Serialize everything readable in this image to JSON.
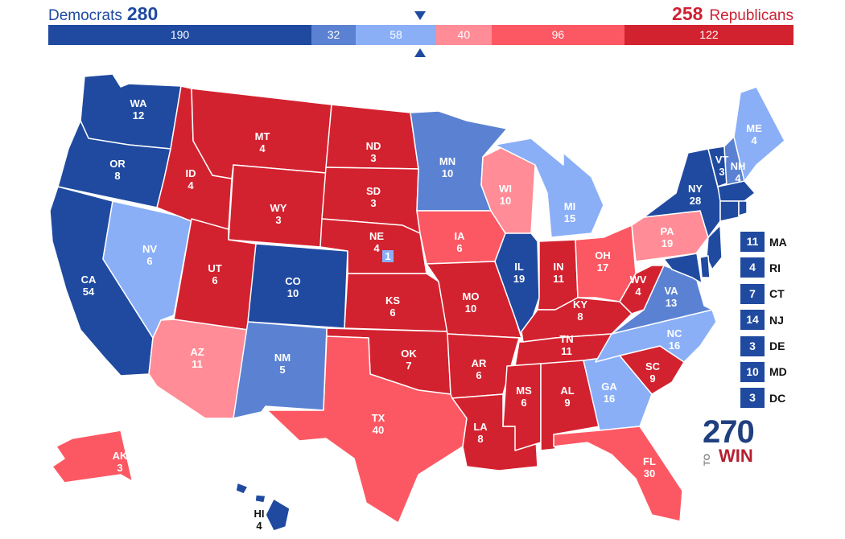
{
  "header": {
    "dem_label": "Democrats",
    "dem_total": "280",
    "rep_total": "258",
    "rep_label": "Republicans"
  },
  "bar": {
    "segments": [
      {
        "label": "190",
        "value": 190,
        "color": "#1f4aa0"
      },
      {
        "label": "32",
        "value": 32,
        "color": "#5b82d2"
      },
      {
        "label": "58",
        "value": 58,
        "color": "#8aaff7"
      },
      {
        "label": "40",
        "value": 40,
        "color": "#ff8c96"
      },
      {
        "label": "96",
        "value": 96,
        "color": "#fc5863"
      },
      {
        "label": "122",
        "value": 122,
        "color": "#d3222f"
      }
    ]
  },
  "colors": {
    "safe_dem": "#1f4aa0",
    "likely_dem": "#5b82d2",
    "lean_dem": "#8aaff7",
    "lean_rep": "#ff8c96",
    "likely_rep": "#fc5863",
    "safe_rep": "#d3222f"
  },
  "states": [
    {
      "abbr": "WA",
      "ev": "12",
      "rating": "safe_dem"
    },
    {
      "abbr": "OR",
      "ev": "8",
      "rating": "safe_dem"
    },
    {
      "abbr": "CA",
      "ev": "54",
      "rating": "safe_dem"
    },
    {
      "abbr": "NV",
      "ev": "6",
      "rating": "lean_dem"
    },
    {
      "abbr": "ID",
      "ev": "4",
      "rating": "safe_rep"
    },
    {
      "abbr": "MT",
      "ev": "4",
      "rating": "safe_rep"
    },
    {
      "abbr": "WY",
      "ev": "3",
      "rating": "safe_rep"
    },
    {
      "abbr": "UT",
      "ev": "6",
      "rating": "safe_rep"
    },
    {
      "abbr": "AZ",
      "ev": "11",
      "rating": "lean_rep"
    },
    {
      "abbr": "CO",
      "ev": "10",
      "rating": "safe_dem"
    },
    {
      "abbr": "NM",
      "ev": "5",
      "rating": "likely_dem"
    },
    {
      "abbr": "ND",
      "ev": "3",
      "rating": "safe_rep"
    },
    {
      "abbr": "SD",
      "ev": "3",
      "rating": "safe_rep"
    },
    {
      "abbr": "NE",
      "ev": "4",
      "rating": "safe_rep"
    },
    {
      "abbr": "KS",
      "ev": "6",
      "rating": "safe_rep"
    },
    {
      "abbr": "OK",
      "ev": "7",
      "rating": "safe_rep"
    },
    {
      "abbr": "TX",
      "ev": "40",
      "rating": "likely_rep"
    },
    {
      "abbr": "MN",
      "ev": "10",
      "rating": "likely_dem"
    },
    {
      "abbr": "IA",
      "ev": "6",
      "rating": "likely_rep"
    },
    {
      "abbr": "MO",
      "ev": "10",
      "rating": "safe_rep"
    },
    {
      "abbr": "AR",
      "ev": "6",
      "rating": "safe_rep"
    },
    {
      "abbr": "LA",
      "ev": "8",
      "rating": "safe_rep"
    },
    {
      "abbr": "WI",
      "ev": "10",
      "rating": "lean_rep"
    },
    {
      "abbr": "IL",
      "ev": "19",
      "rating": "safe_dem"
    },
    {
      "abbr": "MI",
      "ev": "15",
      "rating": "lean_dem"
    },
    {
      "abbr": "IN",
      "ev": "11",
      "rating": "safe_rep"
    },
    {
      "abbr": "OH",
      "ev": "17",
      "rating": "likely_rep"
    },
    {
      "abbr": "KY",
      "ev": "8",
      "rating": "safe_rep"
    },
    {
      "abbr": "TN",
      "ev": "11",
      "rating": "safe_rep"
    },
    {
      "abbr": "MS",
      "ev": "6",
      "rating": "safe_rep"
    },
    {
      "abbr": "AL",
      "ev": "9",
      "rating": "safe_rep"
    },
    {
      "abbr": "GA",
      "ev": "16",
      "rating": "lean_dem"
    },
    {
      "abbr": "FL",
      "ev": "30",
      "rating": "likely_rep"
    },
    {
      "abbr": "SC",
      "ev": "9",
      "rating": "safe_rep"
    },
    {
      "abbr": "NC",
      "ev": "16",
      "rating": "lean_dem"
    },
    {
      "abbr": "VA",
      "ev": "13",
      "rating": "likely_dem"
    },
    {
      "abbr": "WV",
      "ev": "4",
      "rating": "safe_rep"
    },
    {
      "abbr": "PA",
      "ev": "19",
      "rating": "lean_rep"
    },
    {
      "abbr": "NY",
      "ev": "28",
      "rating": "safe_dem"
    },
    {
      "abbr": "VT",
      "ev": "3",
      "rating": "safe_dem"
    },
    {
      "abbr": "NH",
      "ev": "4",
      "rating": "likely_dem"
    },
    {
      "abbr": "ME",
      "ev": "4",
      "rating": "lean_dem"
    },
    {
      "abbr": "AK",
      "ev": "3",
      "rating": "likely_rep"
    },
    {
      "abbr": "HI",
      "ev": "4",
      "rating": "safe_dem"
    }
  ],
  "ne_district": {
    "value": "1",
    "rating": "lean_dem"
  },
  "small_states": [
    {
      "ev": "11",
      "abbr": "MA",
      "rating": "safe_dem"
    },
    {
      "ev": "4",
      "abbr": "RI",
      "rating": "safe_dem"
    },
    {
      "ev": "7",
      "abbr": "CT",
      "rating": "safe_dem"
    },
    {
      "ev": "14",
      "abbr": "NJ",
      "rating": "safe_dem"
    },
    {
      "ev": "3",
      "abbr": "DE",
      "rating": "safe_dem"
    },
    {
      "ev": "10",
      "abbr": "MD",
      "rating": "safe_dem"
    },
    {
      "ev": "3",
      "abbr": "DC",
      "rating": "safe_dem"
    }
  ],
  "logo": {
    "number": "270",
    "to": "TO",
    "win": "WIN"
  }
}
